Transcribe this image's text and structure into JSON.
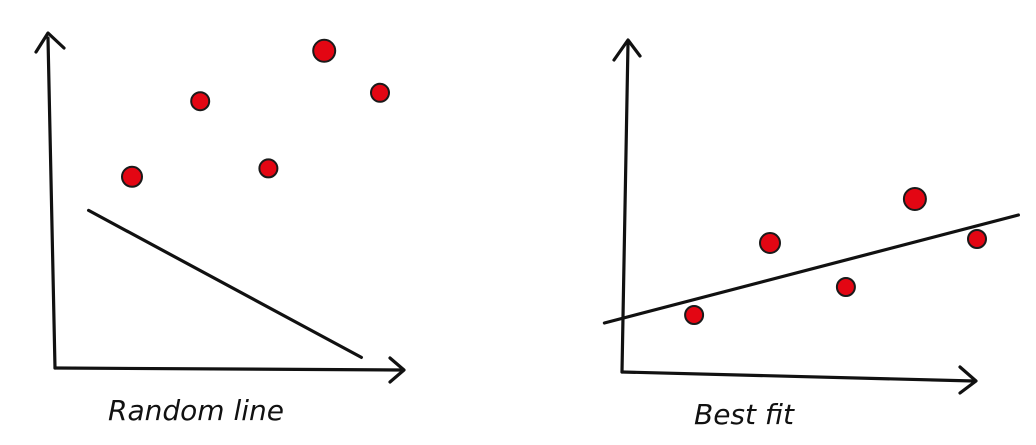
{
  "colors": {
    "point_fill": "#e30613",
    "point_stroke": "#1a1a1a",
    "ink": "#111111"
  },
  "panels": [
    {
      "id": "random",
      "caption": "Random line",
      "points": [
        {
          "x": 1.0,
          "y": 4.6
        },
        {
          "x": 2.1,
          "y": 6.4
        },
        {
          "x": 3.2,
          "y": 4.8
        },
        {
          "x": 4.1,
          "y": 7.6
        },
        {
          "x": 5.0,
          "y": 6.6
        }
      ],
      "line": {
        "from": {
          "x": 0.3,
          "y": 3.8
        },
        "to": {
          "x": 4.7,
          "y": 0.3
        }
      }
    },
    {
      "id": "best-fit",
      "caption": "Best fit",
      "points": [
        {
          "x": 0.9,
          "y": 1.5
        },
        {
          "x": 2.0,
          "y": 3.3
        },
        {
          "x": 3.1,
          "y": 2.2
        },
        {
          "x": 4.1,
          "y": 4.4
        },
        {
          "x": 5.0,
          "y": 3.4
        }
      ],
      "line": {
        "from": {
          "x": -0.4,
          "y": 1.3
        },
        "to": {
          "x": 5.6,
          "y": 4.0
        }
      }
    }
  ]
}
